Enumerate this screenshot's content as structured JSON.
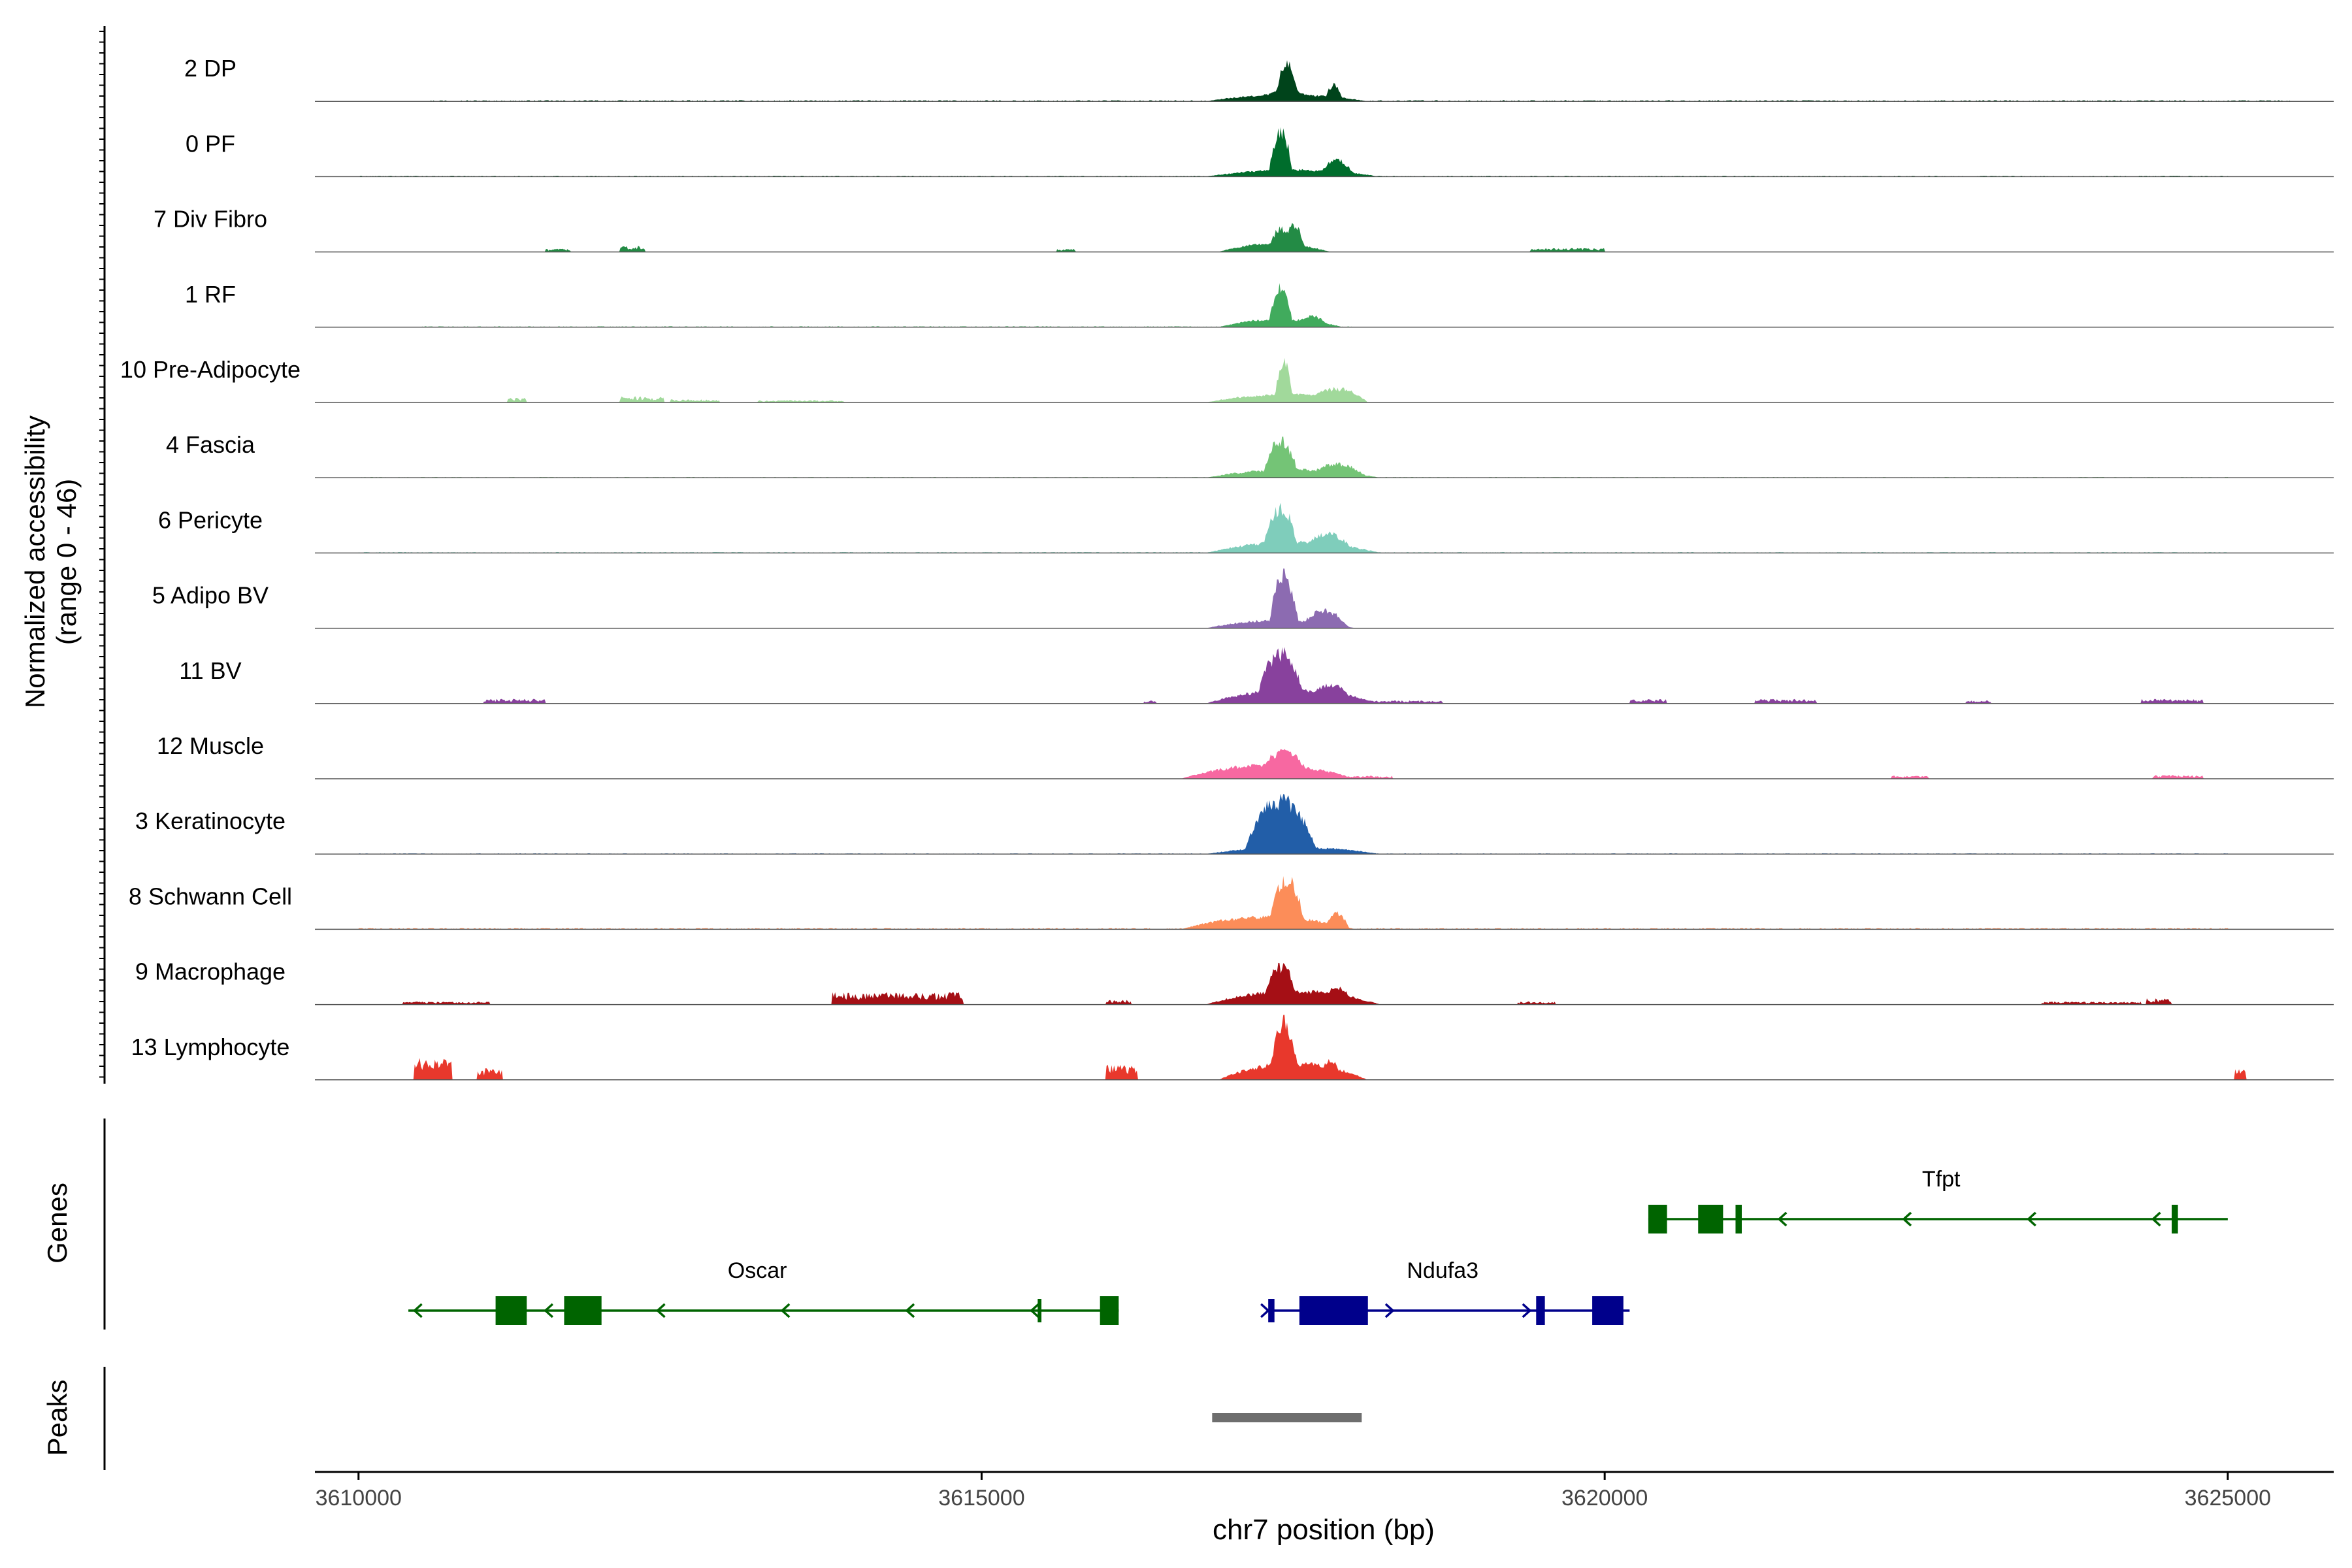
{
  "chart_data": {
    "type": "area",
    "title": "",
    "ylabel_line1": "Normalized accessibility",
    "ylabel_line2": "(range 0 - 46)",
    "xlabel": "chr7 position (bp)",
    "xlim": [
      3609650,
      3625850
    ],
    "ylim": [
      0,
      46
    ],
    "xticks": [
      3610000,
      3615000,
      3620000,
      3625000
    ],
    "xtick_labels": [
      "3610000",
      "3615000",
      "3620000",
      "3625000"
    ],
    "track_labels": {
      "genes": "Genes",
      "peaks": "Peaks"
    },
    "series": [
      {
        "name": "2 DP",
        "color": "#00441b",
        "noise": [
          [
            3610500,
            3625500,
            0.5
          ]
        ],
        "clusters": [
          [
            3616800,
            3618100,
            5
          ],
          [
            3617200,
            3617700,
            8
          ],
          [
            3617350,
            3617550,
            27
          ],
          [
            3617750,
            3617900,
            12
          ]
        ]
      },
      {
        "name": "0 PF",
        "color": "#006d2c",
        "noise": [
          [
            3610000,
            3625000,
            0.4
          ]
        ],
        "clusters": [
          [
            3616800,
            3618200,
            5
          ],
          [
            3617300,
            3617500,
            34
          ],
          [
            3617700,
            3618000,
            12
          ]
        ]
      },
      {
        "name": "7 Div Fibro",
        "color": "#238b45",
        "noise": [
          [
            3611500,
            3611700,
            2
          ],
          [
            3612100,
            3612300,
            4
          ],
          [
            3615600,
            3615750,
            2
          ],
          [
            3619400,
            3620000,
            2.5
          ]
        ],
        "clusters": [
          [
            3616900,
            3617800,
            6
          ],
          [
            3617300,
            3617500,
            17
          ],
          [
            3617400,
            3617600,
            20
          ]
        ]
      },
      {
        "name": "1 RF",
        "color": "#41ab5d",
        "noise": [
          [
            3610500,
            3618000,
            0.4
          ]
        ],
        "clusters": [
          [
            3616900,
            3617900,
            6
          ],
          [
            3617300,
            3617500,
            30
          ],
          [
            3617500,
            3617800,
            8
          ]
        ]
      },
      {
        "name": "10 Pre-Adipocyte",
        "color": "#a1d99b",
        "noise": [
          [
            3611200,
            3611350,
            3
          ],
          [
            3612100,
            3612450,
            4
          ],
          [
            3612500,
            3612900,
            2
          ],
          [
            3613200,
            3613900,
            1.5
          ]
        ],
        "clusters": [
          [
            3616800,
            3618100,
            6
          ],
          [
            3617350,
            3617500,
            32
          ],
          [
            3617600,
            3618100,
            10
          ]
        ]
      },
      {
        "name": "4 Fascia",
        "color": "#74c476",
        "noise": [
          [
            3610000,
            3625000,
            0.3
          ]
        ],
        "clusters": [
          [
            3616800,
            3618200,
            6
          ],
          [
            3617250,
            3617550,
            27
          ],
          [
            3617600,
            3618100,
            10
          ]
        ]
      },
      {
        "name": "6 Pericyte",
        "color": "#7fcdbb",
        "noise": [
          [
            3610000,
            3625000,
            0.4
          ]
        ],
        "clusters": [
          [
            3616800,
            3618200,
            8
          ],
          [
            3617250,
            3617550,
            33
          ],
          [
            3617550,
            3618000,
            14
          ]
        ]
      },
      {
        "name": "5 Adipo BV",
        "color": "#8c6bb1",
        "noise": [],
        "clusters": [
          [
            3616800,
            3618000,
            6
          ],
          [
            3617300,
            3617550,
            39
          ],
          [
            3617550,
            3617950,
            13
          ]
        ]
      },
      {
        "name": "11 BV",
        "color": "#88419d",
        "noise": [
          [
            3611000,
            3611500,
            3
          ],
          [
            3616300,
            3616400,
            2
          ],
          [
            3617950,
            3618700,
            2
          ],
          [
            3620200,
            3620500,
            3
          ],
          [
            3621200,
            3621700,
            3
          ],
          [
            3622900,
            3623100,
            2
          ],
          [
            3624300,
            3624800,
            3
          ]
        ],
        "clusters": [
          [
            3616800,
            3618200,
            10
          ],
          [
            3617200,
            3617600,
            38
          ],
          [
            3617600,
            3618000,
            14
          ]
        ]
      },
      {
        "name": "12 Muscle",
        "color": "#f768a1",
        "noise": [
          [
            3617900,
            3618300,
            2
          ],
          [
            3622300,
            3622600,
            2
          ],
          [
            3624400,
            3624800,
            2.5
          ]
        ],
        "clusters": [
          [
            3616600,
            3618000,
            10
          ],
          [
            3617200,
            3617650,
            20
          ]
        ]
      },
      {
        "name": "3 Keratinocyte",
        "color": "#225ea8",
        "noise": [
          [
            3610000,
            3625000,
            0.3
          ]
        ],
        "clusters": [
          [
            3617100,
            3617700,
            40
          ],
          [
            3616800,
            3618200,
            5
          ]
        ]
      },
      {
        "name": "8 Schwann Cell",
        "color": "#fc8d59",
        "noise": [
          [
            3610000,
            3625000,
            0.5
          ]
        ],
        "clusters": [
          [
            3616600,
            3618000,
            9
          ],
          [
            3617300,
            3617600,
            38
          ],
          [
            3617750,
            3617950,
            12
          ]
        ]
      },
      {
        "name": "9 Macrophage",
        "color": "#a50f15",
        "noise": [
          [
            3610350,
            3611050,
            2
          ],
          [
            3613800,
            3614850,
            8
          ],
          [
            3616000,
            3616200,
            3
          ],
          [
            3619300,
            3619600,
            2
          ],
          [
            3623500,
            3624300,
            2
          ],
          [
            3624350,
            3624550,
            4
          ]
        ],
        "clusters": [
          [
            3616800,
            3618200,
            10
          ],
          [
            3617250,
            3617550,
            28
          ],
          [
            3617700,
            3618000,
            12
          ]
        ]
      },
      {
        "name": "13 Lymphocyte",
        "color": "#e8382c",
        "noise": [
          [
            3610450,
            3610750,
            14
          ],
          [
            3610950,
            3611150,
            8
          ],
          [
            3616000,
            3616250,
            10
          ],
          [
            3617900,
            3618000,
            4
          ],
          [
            3625050,
            3625150,
            8
          ]
        ],
        "clusters": [
          [
            3616900,
            3618100,
            12
          ],
          [
            3617300,
            3617550,
            42
          ],
          [
            3617700,
            3617900,
            14
          ]
        ]
      }
    ],
    "genes": [
      {
        "name": "Tfpt",
        "color": "#006400",
        "strand": "-",
        "row": 1,
        "line": [
          3620350,
          3625000
        ],
        "exons": [
          [
            3620350,
            3620500,
            "thick"
          ],
          [
            3620750,
            3620950,
            "thick"
          ],
          [
            3621050,
            3621100,
            "thick"
          ],
          [
            3624550,
            3624600,
            "thick"
          ]
        ],
        "arrows": [
          3621400,
          3622400,
          3623400,
          3624400
        ],
        "label_at": 3622700
      },
      {
        "name": "Oscar",
        "color": "#006400",
        "strand": "-",
        "row": 2,
        "line": [
          3610400,
          3616100
        ],
        "exons": [
          [
            3611100,
            3611350,
            "thick"
          ],
          [
            3611650,
            3611950,
            "thick"
          ],
          [
            3615450,
            3615480,
            "thin"
          ],
          [
            3615950,
            3616100,
            "thick"
          ]
        ],
        "arrows": [
          3610450,
          3611500,
          3612400,
          3613400,
          3614400,
          3615400
        ],
        "label_at": 3613200
      },
      {
        "name": "Ndufa3",
        "color": "#00008b",
        "strand": "+",
        "row": 2,
        "line": [
          3617300,
          3620200
        ],
        "exons": [
          [
            3617300,
            3617350,
            "thin"
          ],
          [
            3617550,
            3618100,
            "thick"
          ],
          [
            3619450,
            3619520,
            "thick"
          ],
          [
            3619900,
            3620150,
            "thick"
          ]
        ],
        "arrows": [
          3617300,
          3618300,
          3619400
        ],
        "label_at": 3618700
      }
    ],
    "peaks": [
      [
        3616850,
        3618050
      ]
    ]
  }
}
